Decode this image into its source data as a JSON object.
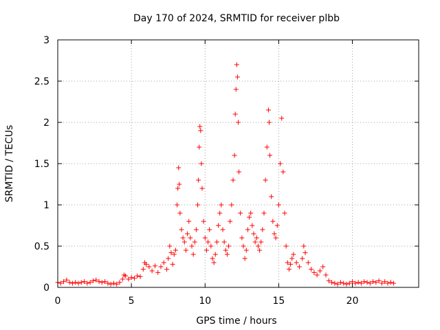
{
  "chart_data": {
    "type": "scatter",
    "title": "Day 170 of 2024, SRMTID for receiver plbb",
    "xlabel": "GPS time / hours",
    "ylabel": "SRMTID / TECUs",
    "xlim": [
      0,
      24.5
    ],
    "ylim": [
      0,
      3
    ],
    "xticks": [
      0,
      5,
      10,
      15,
      20
    ],
    "yticks": [
      0,
      0.5,
      1,
      1.5,
      2,
      2.5,
      3
    ],
    "xtick_labels": [
      "0",
      "5",
      "10",
      "15",
      "20"
    ],
    "ytick_labels": [
      "0",
      "0.5",
      "1",
      "1.5",
      "2",
      "2.5",
      "3"
    ],
    "grid": true,
    "marker": "plus",
    "series_color": "#ff0000",
    "series": [
      {
        "name": "SRMTID",
        "points": [
          [
            0.0,
            0.06
          ],
          [
            0.2,
            0.05
          ],
          [
            0.4,
            0.07
          ],
          [
            0.6,
            0.09
          ],
          [
            0.8,
            0.06
          ],
          [
            1.0,
            0.05
          ],
          [
            1.2,
            0.06
          ],
          [
            1.4,
            0.05
          ],
          [
            1.6,
            0.06
          ],
          [
            1.8,
            0.07
          ],
          [
            2.0,
            0.05
          ],
          [
            2.2,
            0.06
          ],
          [
            2.4,
            0.08
          ],
          [
            2.6,
            0.09
          ],
          [
            2.8,
            0.07
          ],
          [
            3.0,
            0.06
          ],
          [
            3.2,
            0.07
          ],
          [
            3.4,
            0.05
          ],
          [
            3.6,
            0.04
          ],
          [
            3.8,
            0.05
          ],
          [
            4.0,
            0.04
          ],
          [
            4.2,
            0.06
          ],
          [
            4.4,
            0.1
          ],
          [
            4.5,
            0.15
          ],
          [
            4.6,
            0.14
          ],
          [
            4.8,
            0.1
          ],
          [
            5.0,
            0.12
          ],
          [
            5.2,
            0.11
          ],
          [
            5.4,
            0.14
          ],
          [
            5.6,
            0.13
          ],
          [
            5.8,
            0.22
          ],
          [
            5.9,
            0.3
          ],
          [
            6.0,
            0.28
          ],
          [
            6.2,
            0.25
          ],
          [
            6.4,
            0.2
          ],
          [
            6.6,
            0.26
          ],
          [
            6.8,
            0.18
          ],
          [
            7.0,
            0.25
          ],
          [
            7.2,
            0.3
          ],
          [
            7.4,
            0.22
          ],
          [
            7.5,
            0.35
          ],
          [
            7.6,
            0.5
          ],
          [
            7.7,
            0.42
          ],
          [
            7.8,
            0.28
          ],
          [
            7.9,
            0.4
          ],
          [
            8.0,
            0.45
          ],
          [
            8.1,
            1.0
          ],
          [
            8.15,
            1.2
          ],
          [
            8.2,
            1.45
          ],
          [
            8.25,
            1.25
          ],
          [
            8.3,
            0.9
          ],
          [
            8.4,
            0.7
          ],
          [
            8.5,
            0.6
          ],
          [
            8.6,
            0.55
          ],
          [
            8.7,
            0.45
          ],
          [
            8.8,
            0.65
          ],
          [
            8.9,
            0.8
          ],
          [
            9.0,
            0.6
          ],
          [
            9.1,
            0.5
          ],
          [
            9.2,
            0.4
          ],
          [
            9.3,
            0.55
          ],
          [
            9.4,
            0.7
          ],
          [
            9.5,
            1.0
          ],
          [
            9.55,
            1.3
          ],
          [
            9.6,
            1.7
          ],
          [
            9.65,
            1.95
          ],
          [
            9.7,
            1.9
          ],
          [
            9.75,
            1.5
          ],
          [
            9.8,
            1.2
          ],
          [
            9.9,
            0.8
          ],
          [
            10.0,
            0.6
          ],
          [
            10.1,
            0.45
          ],
          [
            10.2,
            0.55
          ],
          [
            10.3,
            0.7
          ],
          [
            10.4,
            0.5
          ],
          [
            10.5,
            0.35
          ],
          [
            10.6,
            0.3
          ],
          [
            10.7,
            0.4
          ],
          [
            10.8,
            0.55
          ],
          [
            10.9,
            0.75
          ],
          [
            11.0,
            0.9
          ],
          [
            11.1,
            1.0
          ],
          [
            11.2,
            0.7
          ],
          [
            11.3,
            0.55
          ],
          [
            11.4,
            0.45
          ],
          [
            11.5,
            0.4
          ],
          [
            11.6,
            0.5
          ],
          [
            11.7,
            0.8
          ],
          [
            11.8,
            1.0
          ],
          [
            11.9,
            1.3
          ],
          [
            12.0,
            1.6
          ],
          [
            12.05,
            2.1
          ],
          [
            12.1,
            2.4
          ],
          [
            12.15,
            2.7
          ],
          [
            12.2,
            2.55
          ],
          [
            12.25,
            2.0
          ],
          [
            12.3,
            1.4
          ],
          [
            12.4,
            0.9
          ],
          [
            12.5,
            0.6
          ],
          [
            12.6,
            0.5
          ],
          [
            12.7,
            0.35
          ],
          [
            12.8,
            0.45
          ],
          [
            12.9,
            0.7
          ],
          [
            13.0,
            0.85
          ],
          [
            13.1,
            0.9
          ],
          [
            13.2,
            0.75
          ],
          [
            13.3,
            0.65
          ],
          [
            13.4,
            0.55
          ],
          [
            13.5,
            0.6
          ],
          [
            13.6,
            0.5
          ],
          [
            13.7,
            0.45
          ],
          [
            13.8,
            0.55
          ],
          [
            13.9,
            0.7
          ],
          [
            14.0,
            0.9
          ],
          [
            14.1,
            1.3
          ],
          [
            14.2,
            1.7
          ],
          [
            14.3,
            2.15
          ],
          [
            14.35,
            2.0
          ],
          [
            14.4,
            1.6
          ],
          [
            14.5,
            1.1
          ],
          [
            14.6,
            0.8
          ],
          [
            14.7,
            0.65
          ],
          [
            14.8,
            0.6
          ],
          [
            14.9,
            0.75
          ],
          [
            15.0,
            1.0
          ],
          [
            15.1,
            1.5
          ],
          [
            15.2,
            2.05
          ],
          [
            15.3,
            1.4
          ],
          [
            15.4,
            0.9
          ],
          [
            15.5,
            0.5
          ],
          [
            15.6,
            0.3
          ],
          [
            15.7,
            0.22
          ],
          [
            15.8,
            0.28
          ],
          [
            15.9,
            0.35
          ],
          [
            16.0,
            0.4
          ],
          [
            16.2,
            0.3
          ],
          [
            16.4,
            0.25
          ],
          [
            16.6,
            0.35
          ],
          [
            16.7,
            0.5
          ],
          [
            16.8,
            0.42
          ],
          [
            17.0,
            0.3
          ],
          [
            17.2,
            0.22
          ],
          [
            17.4,
            0.18
          ],
          [
            17.6,
            0.15
          ],
          [
            17.8,
            0.2
          ],
          [
            18.0,
            0.25
          ],
          [
            18.2,
            0.15
          ],
          [
            18.4,
            0.08
          ],
          [
            18.6,
            0.06
          ],
          [
            18.8,
            0.05
          ],
          [
            19.0,
            0.04
          ],
          [
            19.2,
            0.06
          ],
          [
            19.4,
            0.05
          ],
          [
            19.6,
            0.04
          ],
          [
            19.8,
            0.05
          ],
          [
            20.0,
            0.07
          ],
          [
            20.2,
            0.05
          ],
          [
            20.4,
            0.06
          ],
          [
            20.6,
            0.05
          ],
          [
            20.8,
            0.07
          ],
          [
            21.0,
            0.06
          ],
          [
            21.2,
            0.05
          ],
          [
            21.4,
            0.07
          ],
          [
            21.6,
            0.06
          ],
          [
            21.8,
            0.08
          ],
          [
            22.0,
            0.05
          ],
          [
            22.2,
            0.07
          ],
          [
            22.4,
            0.05
          ],
          [
            22.6,
            0.06
          ],
          [
            22.8,
            0.05
          ]
        ]
      }
    ]
  }
}
